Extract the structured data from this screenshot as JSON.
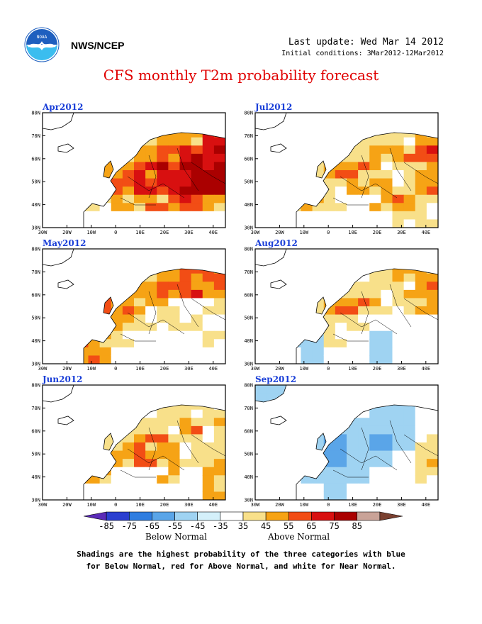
{
  "header": {
    "org": "NWS/NCEP",
    "last_update": "Last update: Wed Mar 14 2012",
    "initial_conditions": "Initial conditions: 3Mar2012-12Mar2012"
  },
  "title": "CFS monthly T2m probability forecast",
  "axes": {
    "lon_labels": [
      "30W",
      "20W",
      "10W",
      "0",
      "10E",
      "20E",
      "30E",
      "40E"
    ],
    "lat_labels": [
      "30N",
      "40N",
      "50N",
      "60N",
      "70N",
      "80N"
    ]
  },
  "panels": [
    {
      "id": "apr",
      "title": "Apr2012",
      "pattern": [
        [
          1,
          1,
          1,
          1,
          1,
          1,
          2,
          2
        ],
        [
          1,
          1,
          1,
          1,
          2,
          3,
          3,
          5
        ],
        [
          1,
          1,
          2,
          2,
          3,
          4,
          5,
          5
        ],
        [
          1,
          2,
          3,
          3,
          4,
          5,
          6,
          6
        ],
        [
          2,
          3,
          3,
          4,
          5,
          5,
          6,
          6
        ],
        [
          1,
          2,
          2,
          3,
          3,
          3,
          4,
          3
        ],
        [
          1,
          1,
          0,
          0,
          0,
          1,
          1,
          0
        ]
      ]
    },
    {
      "id": "jul",
      "title": "Jul2012",
      "pattern": [
        [
          1,
          1,
          1,
          1,
          1,
          1,
          1,
          1
        ],
        [
          1,
          1,
          1,
          1,
          2,
          2,
          2,
          3
        ],
        [
          1,
          1,
          1,
          2,
          2,
          3,
          3,
          4
        ],
        [
          1,
          1,
          2,
          3,
          3,
          2,
          2,
          3
        ],
        [
          1,
          1,
          2,
          2,
          3,
          3,
          2,
          3
        ],
        [
          1,
          2,
          3,
          2,
          1,
          2,
          3,
          2
        ],
        [
          1,
          1,
          1,
          1,
          1,
          1,
          2,
          2
        ]
      ]
    },
    {
      "id": "may",
      "title": "May2012",
      "pattern": [
        [
          1,
          1,
          1,
          1,
          1,
          1,
          2,
          2
        ],
        [
          1,
          1,
          1,
          1,
          2,
          3,
          4,
          4
        ],
        [
          1,
          1,
          2,
          3,
          3,
          4,
          4,
          3
        ],
        [
          1,
          3,
          4,
          3,
          2,
          2,
          0,
          2
        ],
        [
          2,
          3,
          3,
          3,
          2,
          2,
          2,
          1
        ],
        [
          3,
          4,
          3,
          2,
          1,
          1,
          1,
          2
        ],
        [
          1,
          3,
          3,
          0,
          0,
          0,
          0,
          1
        ]
      ]
    },
    {
      "id": "aug",
      "title": "Aug2012",
      "pattern": [
        [
          1,
          1,
          1,
          1,
          1,
          1,
          1,
          1
        ],
        [
          1,
          1,
          1,
          1,
          1,
          2,
          3,
          3
        ],
        [
          1,
          1,
          1,
          2,
          2,
          2,
          2,
          3
        ],
        [
          1,
          1,
          2,
          3,
          3,
          2,
          2,
          3
        ],
        [
          1,
          1,
          2,
          2,
          2,
          1,
          1,
          1
        ],
        [
          1,
          -1,
          -1,
          2,
          1,
          -1,
          1,
          1
        ],
        [
          1,
          1,
          -1,
          1,
          1,
          -1,
          1,
          1
        ]
      ]
    },
    {
      "id": "jun",
      "title": "Jun2012",
      "pattern": [
        [
          1,
          1,
          1,
          1,
          1,
          1,
          1,
          1
        ],
        [
          1,
          1,
          1,
          1,
          1,
          2,
          2,
          2
        ],
        [
          1,
          1,
          1,
          2,
          2,
          2,
          3,
          2
        ],
        [
          1,
          2,
          2,
          2,
          3,
          3,
          2,
          2
        ],
        [
          1,
          2,
          2,
          3,
          4,
          3,
          2,
          2
        ],
        [
          1,
          3,
          3,
          1,
          1,
          2,
          1,
          3
        ],
        [
          1,
          1,
          1,
          0,
          0,
          0,
          1,
          3
        ]
      ]
    },
    {
      "id": "sep",
      "title": "Sep2012",
      "pattern": [
        [
          -1,
          -1,
          1,
          1,
          1,
          1,
          1,
          1
        ],
        [
          -1,
          1,
          1,
          1,
          1,
          -1,
          -1,
          1
        ],
        [
          1,
          1,
          1,
          -1,
          -1,
          -1,
          -1,
          1
        ],
        [
          1,
          1,
          -1,
          -2,
          -1,
          -2,
          -1,
          2
        ],
        [
          1,
          1,
          -1,
          -2,
          -1,
          -1,
          1,
          2
        ],
        [
          1,
          1,
          -1,
          -1,
          -1,
          1,
          1,
          2
        ],
        [
          1,
          1,
          1,
          -1,
          1,
          1,
          1,
          1
        ]
      ]
    }
  ],
  "legend": {
    "labels": [
      "-85",
      "-75",
      "-65",
      "-55",
      "-45",
      "-35",
      "35",
      "45",
      "55",
      "65",
      "75",
      "85"
    ],
    "colors": [
      "#5a2ab8",
      "#2a3fd0",
      "#2f7de0",
      "#5aa5e8",
      "#9fd3f2",
      "#d4f0fa",
      "#ffffff",
      "#f8e08a",
      "#f6a315",
      "#f24d15",
      "#d81010",
      "#aa0000",
      "#c9a398",
      "#7a4030"
    ],
    "below_label": "Below Normal",
    "above_label": "Above Normal"
  },
  "caption": [
    "Shadings are the highest probability of the three categories with blue",
    "for Below Normal, red for Above Normal, and white for Near Normal."
  ]
}
